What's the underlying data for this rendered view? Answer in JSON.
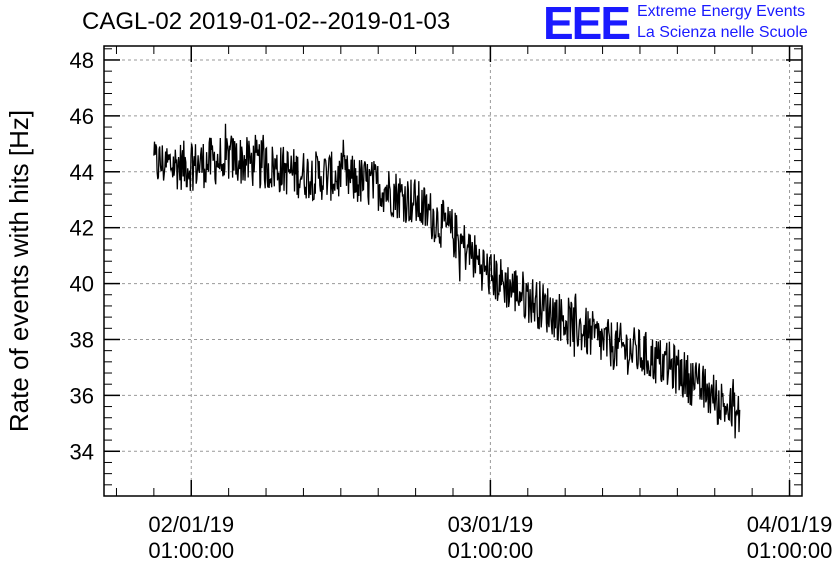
{
  "logo": {
    "mark": "EEE",
    "line1": "Extreme Energy Events",
    "line2": "La Scienza nelle Scuole"
  },
  "colors": {
    "logo": "#1a1aff",
    "series": "#000000",
    "grid": "#999999"
  },
  "chart_data": {
    "type": "line",
    "title": "CAGL-02 2019-01-02--2019-01-03",
    "xlabel": "",
    "ylabel": "Rate of events with hits [Hz]",
    "x_range": [
      "2019-01-01T18:00:00",
      "2019-01-04T02:00:00"
    ],
    "ylim": [
      32.4,
      48.5
    ],
    "grid": true,
    "x_ticks": [
      {
        "value": "2019-01-02T01:00:00",
        "label_date": "02/01/19",
        "label_time": "01:00:00"
      },
      {
        "value": "2019-01-03T01:00:00",
        "label_date": "03/01/19",
        "label_time": "01:00:00"
      },
      {
        "value": "2019-01-04T01:00:00",
        "label_date": "04/01/19",
        "label_time": "01:00:00"
      }
    ],
    "x_minor_ticks": [
      "2019-01-01T19:00:00",
      "2019-01-01T22:00:00",
      "2019-01-02T04:00:00",
      "2019-01-02T07:00:00",
      "2019-01-02T10:00:00",
      "2019-01-02T13:00:00",
      "2019-01-02T16:00:00",
      "2019-01-02T19:00:00",
      "2019-01-02T22:00:00",
      "2019-01-03T04:00:00",
      "2019-01-03T07:00:00",
      "2019-01-03T10:00:00",
      "2019-01-03T13:00:00",
      "2019-01-03T16:00:00",
      "2019-01-03T19:00:00",
      "2019-01-03T22:00:00"
    ],
    "y_ticks": [
      34,
      36,
      38,
      40,
      42,
      44,
      46,
      48
    ],
    "series": [
      {
        "values": [
          [
            "2019-01-01T22:00:00",
            44.3
          ],
          [
            "2019-01-02T01:00:00",
            44.2
          ],
          [
            "2019-01-02T04:00:00",
            44.5
          ],
          [
            "2019-01-02T07:00:00",
            44.2
          ],
          [
            "2019-01-02T10:00:00",
            43.9
          ],
          [
            "2019-01-02T13:00:00",
            43.8
          ],
          [
            "2019-01-02T16:00:00",
            43.5
          ],
          [
            "2019-01-02T19:00:00",
            42.9
          ],
          [
            "2019-01-02T22:00:00",
            41.8
          ],
          [
            "2019-01-03T01:00:00",
            40.3
          ],
          [
            "2019-01-03T04:00:00",
            39.5
          ],
          [
            "2019-01-03T07:00:00",
            38.7
          ],
          [
            "2019-01-03T10:00:00",
            37.9
          ],
          [
            "2019-01-03T13:00:00",
            37.5
          ],
          [
            "2019-01-03T16:00:00",
            36.9
          ],
          [
            "2019-01-03T19:00:00",
            35.9
          ],
          [
            "2019-01-03T21:00:00",
            35.2
          ]
        ],
        "noise_amplitude": 0.9
      }
    ]
  }
}
